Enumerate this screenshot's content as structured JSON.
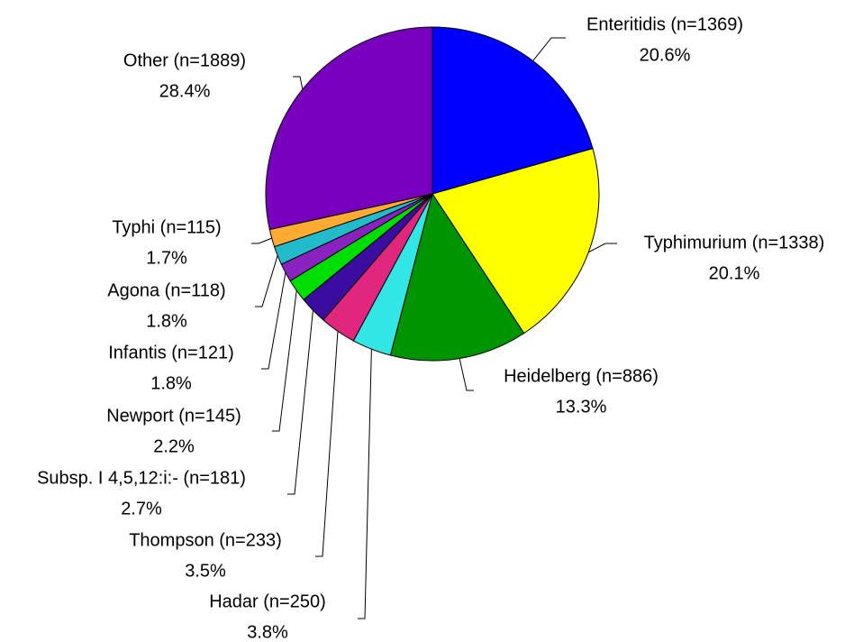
{
  "chart_data": {
    "type": "pie",
    "categories": [
      "Enteritidis (n=1369)",
      "Typhimurium (n=1338)",
      "Heidelberg (n=886)",
      "Hadar (n=250)",
      "Thompson (n=233)",
      "Subsp. I 4,5,12:i:- (n=181)",
      "Newport (n=145)",
      "Infantis (n=121)",
      "Agona (n=118)",
      "Typhi (n=115)",
      "Other (n=1889)"
    ],
    "values": [
      20.6,
      20.1,
      13.3,
      3.8,
      3.5,
      2.7,
      2.2,
      1.8,
      1.8,
      1.7,
      28.4
    ],
    "value_labels": [
      "20.6%",
      "20.1%",
      "13.3%",
      "3.8%",
      "3.5%",
      "2.7%",
      "2.2%",
      "1.8%",
      "1.8%",
      "1.7%",
      "28.4%"
    ],
    "colors": [
      "#0000ff",
      "#ffff00",
      "#009400",
      "#33e6e6",
      "#e0267d",
      "#3a0ca0",
      "#00dd00",
      "#8a22c0",
      "#22bbcc",
      "#ffaa33",
      "#7a00c0"
    ]
  }
}
